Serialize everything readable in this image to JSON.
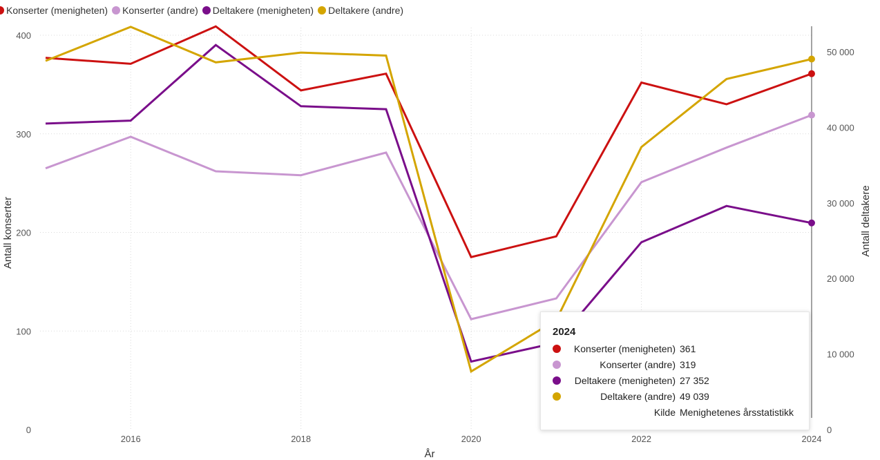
{
  "legend": [
    {
      "label": "Konserter (menigheten)",
      "color": "#cc1111"
    },
    {
      "label": "Konserter (andre)",
      "color": "#c896d0"
    },
    {
      "label": "Deltakere (menigheten)",
      "color": "#7a0e8a"
    },
    {
      "label": "Deltakere (andre)",
      "color": "#d4a500"
    }
  ],
  "tooltip": {
    "title": "2024",
    "rows": [
      {
        "label": "Konserter (menigheten)",
        "value": "361",
        "color": "#cc1111"
      },
      {
        "label": "Konserter (andre)",
        "value": "319",
        "color": "#c896d0"
      },
      {
        "label": "Deltakere (menigheten)",
        "value": "27 352",
        "color": "#7a0e8a"
      },
      {
        "label": "Deltakere (andre)",
        "value": "49 039",
        "color": "#d4a500"
      },
      {
        "label": "Kilde",
        "value": "Menighetenes årsstatistikk",
        "color": ""
      }
    ]
  },
  "chart_data": {
    "type": "line",
    "xlabel": "År",
    "ylabel_left": "Antall konserter",
    "ylabel_right": "Antall deltakere",
    "x": [
      2015,
      2016,
      2017,
      2018,
      2019,
      2020,
      2021,
      2022,
      2023,
      2024
    ],
    "x_ticks": [
      "2016",
      "2018",
      "2020",
      "2022",
      "2024"
    ],
    "ylim_left": [
      0,
      400
    ],
    "ylim_right": [
      0,
      50000
    ],
    "y_ticks_left": [
      "0",
      "100",
      "200",
      "300",
      "400"
    ],
    "y_ticks_right": [
      "0",
      "10 000",
      "20 000",
      "30 000",
      "40 000",
      "50 000"
    ],
    "grid": true,
    "legend_position": "top-left",
    "series": [
      {
        "name": "Konserter (menigheten)",
        "axis": "left",
        "color": "#cc1111",
        "values": [
          377,
          371,
          409,
          344,
          361,
          175,
          196,
          352,
          330,
          361
        ]
      },
      {
        "name": "Konserter (andre)",
        "axis": "left",
        "color": "#c896d0",
        "values": [
          265,
          297,
          262,
          258,
          281,
          112,
          133,
          251,
          286,
          319
        ]
      },
      {
        "name": "Deltakere (menigheten)",
        "axis": "right",
        "color": "#7a0e8a",
        "values": [
          40500,
          40900,
          50900,
          42800,
          42400,
          9000,
          11500,
          24800,
          29600,
          27352
        ]
      },
      {
        "name": "Deltakere (andre)",
        "axis": "right",
        "color": "#d4a500",
        "values": [
          48800,
          53300,
          48600,
          49900,
          49500,
          7700,
          14500,
          37400,
          46400,
          49039
        ]
      }
    ]
  }
}
